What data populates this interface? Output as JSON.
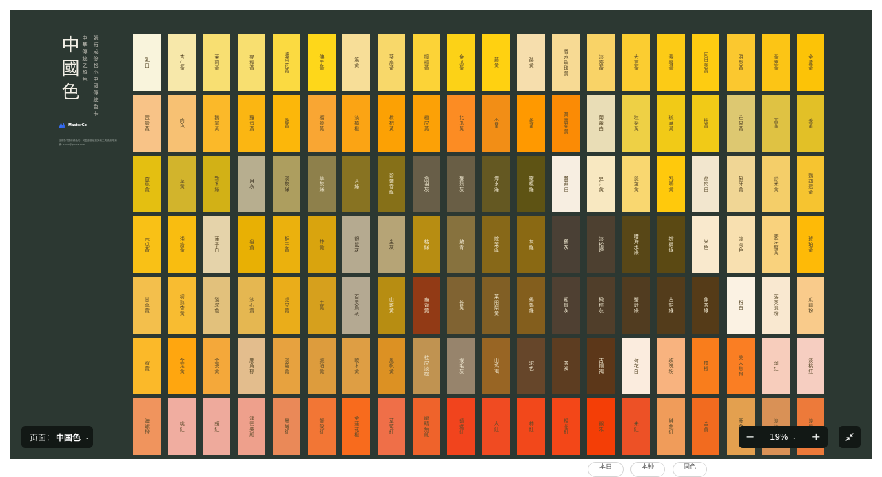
{
  "canvas": {
    "title": "中國色",
    "subtitle_lines": [
      "中華傳統之顏色",
      "張拓成份也小中國傳統色卡"
    ],
    "brand": "MasterGo",
    "info": "已收录中国传统色彩，可复制色值到其他工具使用 联系我：shuo@gosha.com"
  },
  "colors": [
    [
      {
        "n": "乳白",
        "c": "#f9f4dc",
        "t": "#5a4a2a"
      },
      {
        "n": "杏仁黃",
        "c": "#f7e8aa",
        "t": "#5a4a2a"
      },
      {
        "n": "茉莉黃",
        "c": "#f8df72",
        "t": "#5a4a2a"
      },
      {
        "n": "麥稈黃",
        "c": "#f8df70",
        "t": "#5a4a2a"
      },
      {
        "n": "油菜花黃",
        "c": "#fbda41",
        "t": "#5a4a2a"
      },
      {
        "n": "佛手黃",
        "c": "#fed71a",
        "t": "#5a4a2a"
      },
      {
        "n": "篾黃",
        "c": "#f7de98",
        "t": "#5a4a2a"
      },
      {
        "n": "葵扇黃",
        "c": "#f8d86a",
        "t": "#5a4a2a"
      },
      {
        "n": "檸檬黃",
        "c": "#fcd337",
        "t": "#5a4a2a"
      },
      {
        "n": "金瓜黃",
        "c": "#fcd217",
        "t": "#5a4a2a"
      },
      {
        "n": "藤黃",
        "c": "#ffd111",
        "t": "#5a4a2a"
      },
      {
        "n": "酪黃",
        "c": "#f6dead",
        "t": "#5a4a2a"
      },
      {
        "n": "香水玫瑰黃",
        "c": "#f7da94",
        "t": "#5a4a2a"
      },
      {
        "n": "淡密黃",
        "c": "#f9d367",
        "t": "#5a4a2a"
      },
      {
        "n": "大豆黃",
        "c": "#fbcd31",
        "t": "#5a4a2a"
      },
      {
        "n": "素馨黃",
        "c": "#fccb16",
        "t": "#5a4a2a"
      },
      {
        "n": "向日葵黃",
        "c": "#fecc11",
        "t": "#5a4a2a"
      },
      {
        "n": "雅梨黃",
        "c": "#fbc82f",
        "t": "#5a4a2a"
      },
      {
        "n": "黃連黃",
        "c": "#fcc515",
        "t": "#5a4a2a"
      },
      {
        "n": "金盞黃",
        "c": "#fcc307",
        "t": "#5a4a2a"
      }
    ],
    [
      {
        "n": "蛋殼黃",
        "c": "#f8c387",
        "t": "#5a4a2a"
      },
      {
        "n": "肉色",
        "c": "#f7c173",
        "t": "#5a4a2a"
      },
      {
        "n": "鵝掌黃",
        "c": "#fbb929",
        "t": "#5a4a2a"
      },
      {
        "n": "雞蛋黃",
        "c": "#fbb612",
        "t": "#5a4a2a"
      },
      {
        "n": "鼬黃",
        "c": "#fcb70a",
        "t": "#5a4a2a"
      },
      {
        "n": "榴萼黃",
        "c": "#f9a633",
        "t": "#5a4a2a"
      },
      {
        "n": "淡橘橙",
        "c": "#fba414",
        "t": "#5a4a2a"
      },
      {
        "n": "枇杷黃",
        "c": "#fca104",
        "t": "#5a4a2a"
      },
      {
        "n": "橙皮黃",
        "c": "#fca106",
        "t": "#5a4a2a"
      },
      {
        "n": "北瓜黃",
        "c": "#fc8c23",
        "t": "#5a4a2a"
      },
      {
        "n": "杏黃",
        "c": "#f28e16",
        "t": "#5a4a2a"
      },
      {
        "n": "雄黃",
        "c": "#ff9900",
        "t": "#5a4a2a"
      },
      {
        "n": "萬壽菊黃",
        "c": "#fb8b05",
        "t": "#5a4a2a"
      },
      {
        "n": "菊蕾白",
        "c": "#e9ddb6",
        "t": "#5a4a2a"
      },
      {
        "n": "秋葵黃",
        "c": "#eed045",
        "t": "#5a4a2a"
      },
      {
        "n": "硫華黃",
        "c": "#f1ca17",
        "t": "#5a4a2a"
      },
      {
        "n": "柚黃",
        "c": "#f1ca17",
        "t": "#5a4a2a"
      },
      {
        "n": "芒果黃",
        "c": "#ddc871",
        "t": "#5a4a2a"
      },
      {
        "n": "蒿黃",
        "c": "#dfc243",
        "t": "#5a4a2a"
      },
      {
        "n": "姜黃",
        "c": "#e2c027",
        "t": "#5a4a2a"
      }
    ],
    [
      {
        "n": "香蕉黃",
        "c": "#e4bf11",
        "t": "#5a4a2a"
      },
      {
        "n": "草黃",
        "c": "#d2b42c",
        "t": "#5a4a2a"
      },
      {
        "n": "新禾綠",
        "c": "#d2b116",
        "t": "#5a4a2a"
      },
      {
        "n": "月灰",
        "c": "#b7ae8f",
        "t": "#3a3020"
      },
      {
        "n": "淡灰綠",
        "c": "#ad9e5f",
        "t": "#3a3020"
      },
      {
        "n": "草灰綠",
        "c": "#8e804b",
        "t": "#f0e8d0"
      },
      {
        "n": "苔綠",
        "c": "#887322",
        "t": "#f0e8d0"
      },
      {
        "n": "碧螺春綠",
        "c": "#867018",
        "t": "#f0e8d0"
      },
      {
        "n": "燕羽灰",
        "c": "#685e48",
        "t": "#f0e8d0"
      },
      {
        "n": "蟹殼灰",
        "c": "#695e45",
        "t": "#f0e8d0"
      },
      {
        "n": "潭水綠",
        "c": "#645822",
        "t": "#f0e8d0"
      },
      {
        "n": "橄欖綠",
        "c": "#5e5314",
        "t": "#f0e8d0"
      },
      {
        "n": "蠶繭白",
        "c": "#f7eee1",
        "t": "#5a4a2a"
      },
      {
        "n": "豆汁黃",
        "c": "#f8e8c1",
        "t": "#5a4a2a"
      },
      {
        "n": "淡茧黃",
        "c": "#f9d770",
        "t": "#5a4a2a"
      },
      {
        "n": "乳鴨黃",
        "c": "#ffc90c",
        "t": "#5a4a2a"
      },
      {
        "n": "荔肉白",
        "c": "#f2e6ce",
        "t": "#5a4a2a"
      },
      {
        "n": "象牙黃",
        "c": "#f0d695",
        "t": "#5a4a2a"
      },
      {
        "n": "炒米黃",
        "c": "#f4ce69",
        "t": "#5a4a2a"
      },
      {
        "n": "鸚鵡冠黃",
        "c": "#f6c430",
        "t": "#5a4a2a"
      }
    ],
    [
      {
        "n": "木瓜黃",
        "c": "#f9c116",
        "t": "#5a4a2a"
      },
      {
        "n": "淺烙黃",
        "c": "#f9bd10",
        "t": "#5a4a2a"
      },
      {
        "n": "蓮子白",
        "c": "#e5d3aa",
        "t": "#5a4a2a"
      },
      {
        "n": "谷黃",
        "c": "#e8b004",
        "t": "#5a4a2a"
      },
      {
        "n": "梔子黃",
        "c": "#ebb10d",
        "t": "#5a4a2a"
      },
      {
        "n": "芥黃",
        "c": "#d9a40e",
        "t": "#5a4a2a"
      },
      {
        "n": "銀鼠灰",
        "c": "#b5aa90",
        "t": "#3a3020"
      },
      {
        "n": "尘灰",
        "c": "#b6a476",
        "t": "#3a3020"
      },
      {
        "n": "枯綠",
        "c": "#b78d12",
        "t": "#f0e8d0"
      },
      {
        "n": "鮍青",
        "c": "#87723e",
        "t": "#f0e8d0"
      },
      {
        "n": "粽葉綠",
        "c": "#876818",
        "t": "#f0e8d0"
      },
      {
        "n": "灰綠",
        "c": "#8a6913",
        "t": "#f0e8d0"
      },
      {
        "n": "鶴灰",
        "c": "#4a4035",
        "t": "#f0e8d0"
      },
      {
        "n": "淡松煙",
        "c": "#4d4030",
        "t": "#f0e8d0"
      },
      {
        "n": "暗海水綠",
        "c": "#584717",
        "t": "#f0e8d0"
      },
      {
        "n": "棕榈綠",
        "c": "#5b4913",
        "t": "#f0e8d0"
      },
      {
        "n": "米色",
        "c": "#f9e9cd",
        "t": "#5a4a2a"
      },
      {
        "n": "淡肉色",
        "c": "#f8e0b0",
        "t": "#5a4a2a"
      },
      {
        "n": "麥芽糖黃",
        "c": "#f9d27d",
        "t": "#5a4a2a"
      },
      {
        "n": "琥珀黃",
        "c": "#feba07",
        "t": "#5a4a2a"
      }
    ],
    [
      {
        "n": "甘草黃",
        "c": "#f3bf4c",
        "t": "#5a4a2a"
      },
      {
        "n": "初熟杏黃",
        "c": "#f8bc31",
        "t": "#5a4a2a"
      },
      {
        "n": "淺驼色",
        "c": "#e2c17c",
        "t": "#5a4a2a"
      },
      {
        "n": "沙石黃",
        "c": "#e5b751",
        "t": "#5a4a2a"
      },
      {
        "n": "虎皮黃",
        "c": "#eaad1a",
        "t": "#5a4a2a"
      },
      {
        "n": "土黃",
        "c": "#d6a01d",
        "t": "#5a4a2a"
      },
      {
        "n": "百灵鳥灰",
        "c": "#b4a992",
        "t": "#3a3020"
      },
      {
        "n": "山雞黃",
        "c": "#b78d12",
        "t": "#f0e8d0"
      },
      {
        "n": "龜背黃",
        "c": "#923a15",
        "t": "#f0e8d0"
      },
      {
        "n": "苍黃",
        "c": "#806332",
        "t": "#f0e8d0"
      },
      {
        "n": "莱阳梨黃",
        "c": "#815f25",
        "t": "#f0e8d0"
      },
      {
        "n": "蜴蜴綠",
        "c": "#835e1d",
        "t": "#f0e8d0"
      },
      {
        "n": "松鼠灰",
        "c": "#4f4032",
        "t": "#f0e8d0"
      },
      {
        "n": "橄榄灰",
        "c": "#503e2a",
        "t": "#f0e8d0"
      },
      {
        "n": "蟹殼綠",
        "c": "#513c20",
        "t": "#f0e8d0"
      },
      {
        "n": "古銅綠",
        "c": "#533c1b",
        "t": "#f0e8d0"
      },
      {
        "n": "焦茶綠",
        "c": "#553b18",
        "t": "#f0e8d0"
      },
      {
        "n": "粉白",
        "c": "#fbf2e3",
        "t": "#5a4a2a"
      },
      {
        "n": "落英淡粉",
        "c": "#f9e8d0",
        "t": "#5a4a2a"
      },
      {
        "n": "瓜瓤粉",
        "c": "#f9cb8b",
        "t": "#5a4a2a"
      }
    ],
    [
      {
        "n": "蜜黃",
        "c": "#fbb929",
        "t": "#5a4a2a"
      },
      {
        "n": "金葉黃",
        "c": "#ffa60f",
        "t": "#5a4a2a"
      },
      {
        "n": "金瓷黃",
        "c": "#f4a83a",
        "t": "#5a4a2a"
      },
      {
        "n": "麂角棕",
        "c": "#e3bd8d",
        "t": "#5a4a2a"
      },
      {
        "n": "淡菊黃",
        "c": "#e7a23f",
        "t": "#5a4a2a"
      },
      {
        "n": "琥珀黃",
        "c": "#dd9c3d",
        "t": "#5a4a2a"
      },
      {
        "n": "軟木黃",
        "c": "#de9e44",
        "t": "#5a4a2a"
      },
      {
        "n": "風帆黃",
        "c": "#dc9123",
        "t": "#5a4a2a"
      },
      {
        "n": "桂皮淡棕",
        "c": "#c09351",
        "t": "#f0e8d0"
      },
      {
        "n": "猴毛灰",
        "c": "#97846c",
        "t": "#f0e8d0"
      },
      {
        "n": "山鸡褐",
        "c": "#986524",
        "t": "#f0e8d0"
      },
      {
        "n": "驼色",
        "c": "#66462a",
        "t": "#f0e8d0"
      },
      {
        "n": "茶褐",
        "c": "#5d3d21",
        "t": "#f0e8d0"
      },
      {
        "n": "古铜褐",
        "c": "#5c3719",
        "t": "#f0e8d0"
      },
      {
        "n": "荷花白",
        "c": "#fbecde",
        "t": "#5a4a2a"
      },
      {
        "n": "玫瑰粉",
        "c": "#f8b37f",
        "t": "#5a4a2a"
      },
      {
        "n": "橘橙",
        "c": "#f97d1c",
        "t": "#5a4a2a"
      },
      {
        "n": "美人焦橙",
        "c": "#fa7e23",
        "t": "#5a4a2a"
      },
      {
        "n": "润红",
        "c": "#f7cdbc",
        "t": "#5a4a2a"
      },
      {
        "n": "淡桃红",
        "c": "#f6cec1",
        "t": "#5a4a2a"
      }
    ],
    [
      {
        "n": "海螺橙",
        "c": "#f0945d",
        "t": "#5a4a2a"
      },
      {
        "n": "桃紅",
        "c": "#f0ada0",
        "t": "#5a4a2a"
      },
      {
        "n": "頰紅",
        "c": "#eeaa9c",
        "t": "#5a4a2a"
      },
      {
        "n": "淡罂粟紅",
        "c": "#eea08c",
        "t": "#5a4a2a"
      },
      {
        "n": "晨曦紅",
        "c": "#ea8958",
        "t": "#5a4a2a"
      },
      {
        "n": "蟹殼紅",
        "c": "#f27635",
        "t": "#5a4a2a"
      },
      {
        "n": "金蓮花橙",
        "c": "#f86b1d",
        "t": "#5a4a2a"
      },
      {
        "n": "草莓紅",
        "c": "#ef6f48",
        "t": "#5a4a2a"
      },
      {
        "n": "龍睛魚紅",
        "c": "#ef632b",
        "t": "#5a4a2a"
      },
      {
        "n": "蜻蜓紅",
        "c": "#f1441d",
        "t": "#5a4a2a"
      },
      {
        "n": "大紅",
        "c": "#f04b22",
        "t": "#5a4a2a"
      },
      {
        "n": "柿紅",
        "c": "#f2481b",
        "t": "#5a4a2a"
      },
      {
        "n": "榴花紅",
        "c": "#f34718",
        "t": "#5a4a2a"
      },
      {
        "n": "銀朱",
        "c": "#f43e06",
        "t": "#5a4a2a"
      },
      {
        "n": "朱紅",
        "c": "#ed5126",
        "t": "#5a4a2a"
      },
      {
        "n": "鮭魚紅",
        "c": "#f09c5a",
        "t": "#5a4a2a"
      },
      {
        "n": "金黃",
        "c": "#f26b1f",
        "t": "#5a4a2a"
      },
      {
        "n": "鹿角棕",
        "c": "#e3a04f",
        "t": "#5a4a2a"
      },
      {
        "n": "淡棕色",
        "c": "#d99156",
        "t": "#5a4a2a"
      },
      {
        "n": "淡橘色",
        "c": "#ed7a3a",
        "t": "#5a4a2a"
      }
    ]
  ],
  "page_selector": {
    "label": "页面：",
    "value": "中国色"
  },
  "zoom": {
    "value": "19%",
    "minus": "−",
    "plus": "+"
  },
  "bottom_tabs": [
    "本日",
    "本种",
    "同色"
  ]
}
